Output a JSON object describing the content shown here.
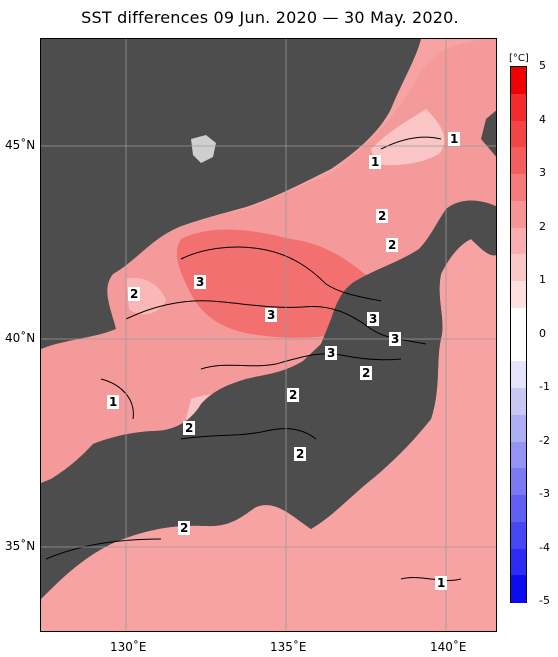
{
  "title": "SST differences 09 Jun. 2020 — 30 May. 2020.",
  "colorbar": {
    "unit": "[°C]",
    "ticks": [
      "5",
      "4",
      "3",
      "2",
      "1",
      "0",
      "-1",
      "-2",
      "-3",
      "-4",
      "-5"
    ],
    "colors": [
      "#f00000",
      "#f52a2a",
      "#f54444",
      "#f55e5e",
      "#f57a7a",
      "#f79494",
      "#f9afaf",
      "#fbc8c8",
      "#fde0e0",
      "#ffffff",
      "#ffffff",
      "#e4e4fb",
      "#c8c8f5",
      "#aeaef5",
      "#9494f5",
      "#7a7af5",
      "#6060f5",
      "#4646f5",
      "#2c2cf5",
      "#0c0cf0"
    ]
  },
  "axes": {
    "lat_labels": [
      "45˚N",
      "40˚N",
      "35˚N"
    ],
    "lon_labels": [
      "130˚E",
      "135˚E",
      "140˚E"
    ]
  },
  "contour_labels": [
    "1",
    "1",
    "2",
    "2",
    "2",
    "3",
    "3",
    "3",
    "3",
    "3",
    "2",
    "2",
    "1",
    "2",
    "2",
    "2",
    "1"
  ],
  "colors": {
    "land": "#4d4d4d",
    "sea_base": "#f7a0a0",
    "grid": "#9a9a9a"
  }
}
